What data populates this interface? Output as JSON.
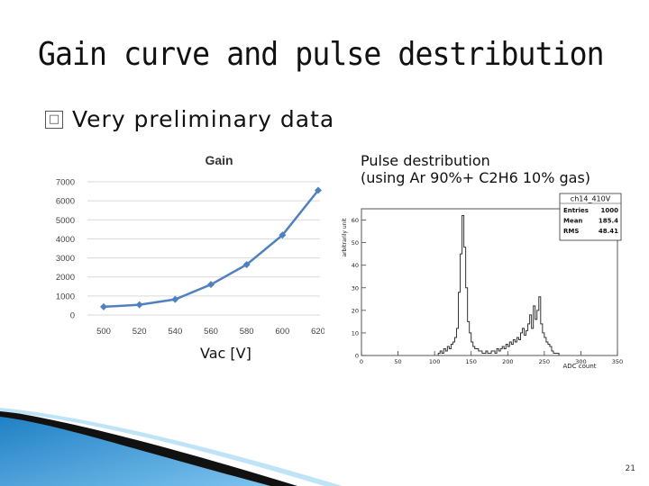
{
  "slide": {
    "title": "Gain curve and pulse destribution",
    "bullet_icon": "ballot-box-icon",
    "bullet_glyph": "□",
    "bullet_text": "Very preliminary data",
    "pulse_caption_line1": "Pulse destribution",
    "pulse_caption_line2": "(using Ar 90%+ C2H6 10% gas)",
    "vac_label": "Vac [V]",
    "page_number": "21"
  },
  "colors": {
    "line": "#4f81bd",
    "grid": "#d9d9d9",
    "histogram": "#333333",
    "accent_blue": "#2f8fd0"
  },
  "chart_data": [
    {
      "type": "line",
      "title": "Gain",
      "xlabel": "Vac [V]",
      "ylabel": "",
      "categories": [
        "500",
        "520",
        "540",
        "560",
        "580",
        "600",
        "620"
      ],
      "series": [
        {
          "values": [
            430,
            540,
            820,
            1600,
            2650,
            4200,
            6550
          ]
        }
      ],
      "ylim": [
        0,
        7000
      ],
      "yticks": [
        "0",
        "1000",
        "2000",
        "3000",
        "4000",
        "5000",
        "6000",
        "7000"
      ],
      "grid": true,
      "legend": "none"
    },
    {
      "type": "bar",
      "title": "",
      "xlabel": "ADC count",
      "ylabel": "arbitrarily unit",
      "x_ticks": [
        "0",
        "50",
        "100",
        "150",
        "200",
        "250",
        "300",
        "350"
      ],
      "y_ticks": [
        "0",
        "10",
        "20",
        "30",
        "40",
        "50",
        "60"
      ],
      "xlim": [
        0,
        350
      ],
      "ylim": [
        0,
        65
      ],
      "stats": {
        "name": "ch14_410V",
        "rows": [
          {
            "label": "Entries",
            "value": "1000"
          },
          {
            "label": "Mean",
            "value": "185.4"
          },
          {
            "label": "RMS",
            "value": "48.41"
          }
        ]
      },
      "bin_width": 2.5,
      "bin_start": 105,
      "counts": [
        1,
        2,
        1,
        3,
        2,
        4,
        3,
        5,
        6,
        8,
        12,
        28,
        45,
        62,
        48,
        30,
        15,
        10,
        6,
        4,
        3,
        3,
        2,
        2,
        1,
        1,
        2,
        1,
        1,
        2,
        2,
        1,
        3,
        2,
        3,
        4,
        3,
        5,
        4,
        6,
        5,
        7,
        6,
        8,
        7,
        10,
        12,
        9,
        11,
        14,
        18,
        12,
        22,
        16,
        20,
        26,
        14,
        10,
        8,
        6,
        5,
        4,
        2,
        1,
        1,
        1
      ],
      "legend": "none"
    }
  ]
}
